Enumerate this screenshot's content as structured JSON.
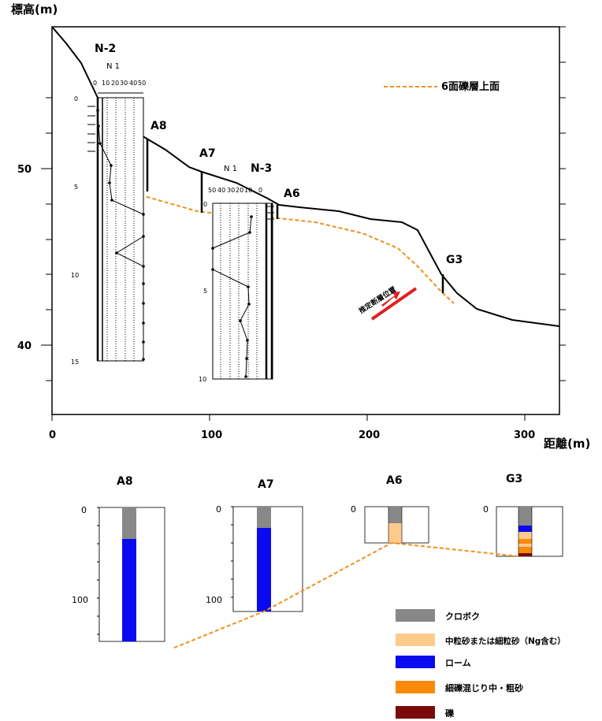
{
  "profile": {
    "y_axis_title": "標高(m)",
    "x_axis_title": "距離(m)",
    "y_ticks": [
      "50",
      "40"
    ],
    "x_ticks": [
      "0",
      "100",
      "200",
      "300"
    ],
    "legend_label": "6面礫層上面",
    "fault_label": "推定断層位置",
    "borehole_labels": [
      "N-2",
      "N-3"
    ],
    "pit_labels": [
      "A8",
      "A7",
      "A6",
      "G3"
    ],
    "n2_log": {
      "title": "N 1",
      "scale_ticks": [
        "0",
        "10",
        "20",
        "30",
        "40",
        "50"
      ],
      "depth_ticks": [
        "0",
        "5",
        "10",
        "15"
      ]
    },
    "n3_log": {
      "title": "N 1",
      "scale_ticks": [
        "50",
        "40",
        "30",
        "20",
        "10",
        "0"
      ],
      "depth_ticks": [
        "0",
        "5",
        "10"
      ]
    },
    "colors": {
      "ground": "#000000",
      "gravel_top": "#f0901e",
      "fault": "#e02020"
    }
  },
  "columns": {
    "pits": [
      {
        "label": "A8",
        "ticks": [
          "0",
          "100"
        ]
      },
      {
        "label": "A7",
        "ticks": [
          "0",
          "100"
        ]
      },
      {
        "label": "A6",
        "ticks": [
          "0"
        ]
      },
      {
        "label": "G3",
        "ticks": [
          "0"
        ]
      }
    ]
  },
  "legend": [
    {
      "label": "クロボク",
      "color": "#888888"
    },
    {
      "label": "中粒砂または細粒砂（Ng含む）",
      "color": "#fccb8c"
    },
    {
      "label": "ローム",
      "color": "#0a0af0"
    },
    {
      "label": "細礫混じり中・粗砂",
      "color": "#fb8a0a"
    },
    {
      "label": "礫",
      "color": "#7a0a0a"
    }
  ]
}
